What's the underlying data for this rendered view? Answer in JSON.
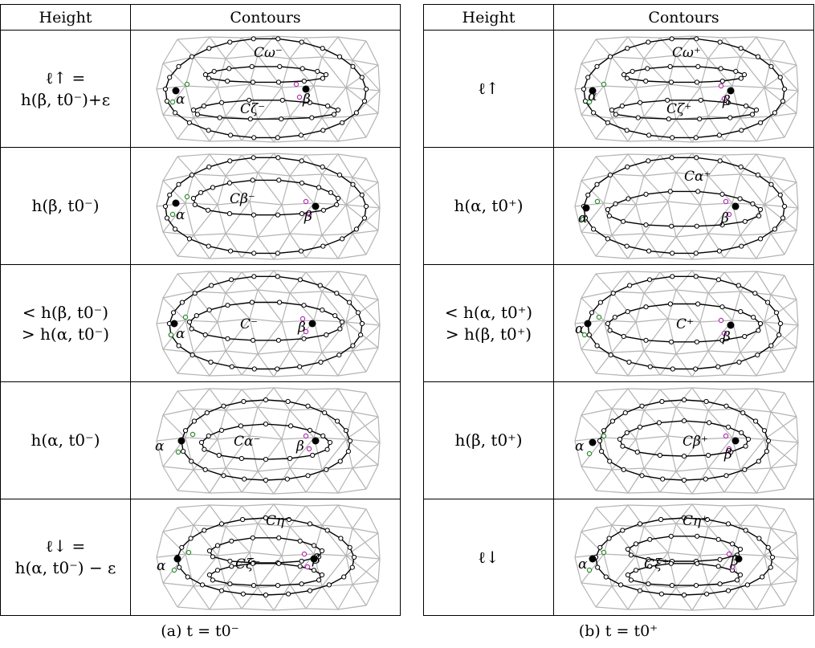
{
  "tables": [
    {
      "headers": {
        "height": "Height",
        "contours": "Contours"
      },
      "rows": [
        {
          "height_lines": [
            "ℓ↑ =",
            "h(β, t0⁻)+ε"
          ],
          "labels": [
            "Cω⁻",
            "Cζ⁻",
            "α",
            "β"
          ]
        },
        {
          "height_lines": [
            "h(β, t0⁻)"
          ],
          "labels": [
            "Cβ⁻",
            "α",
            "β"
          ]
        },
        {
          "height_lines": [
            "< h(β, t0⁻)",
            "> h(α, t0⁻)"
          ],
          "labels": [
            "C⁻",
            "α",
            "β"
          ]
        },
        {
          "height_lines": [
            "h(α, t0⁻)"
          ],
          "labels": [
            "Cα⁻",
            "α",
            "β"
          ]
        },
        {
          "height_lines": [
            "ℓ↓ =",
            "h(α, t0⁻) − ε"
          ],
          "labels": [
            "Cη⁻",
            "Cξ⁻",
            "α",
            "β"
          ]
        }
      ],
      "caption": "(a) t = t0⁻"
    },
    {
      "headers": {
        "height": "Height",
        "contours": "Contours"
      },
      "rows": [
        {
          "height_lines": [
            "ℓ↑"
          ],
          "labels": [
            "Cω⁺",
            "Cζ⁺",
            "α",
            "β"
          ]
        },
        {
          "height_lines": [
            "h(α, t0⁺)"
          ],
          "labels": [
            "Cα⁺",
            "α",
            "β"
          ]
        },
        {
          "height_lines": [
            "< h(α, t0⁺)",
            "> h(β, t0⁺)"
          ],
          "labels": [
            "C⁺",
            "α",
            "β"
          ]
        },
        {
          "height_lines": [
            "h(β, t0⁺)"
          ],
          "labels": [
            "Cβ⁺",
            "α",
            "β"
          ]
        },
        {
          "height_lines": [
            "ℓ↓"
          ],
          "labels": [
            "Cη⁺",
            "Cξ⁺",
            "α",
            "β"
          ]
        }
      ],
      "caption": "(b) t = t0⁺"
    }
  ],
  "colors": {
    "mesh": "#b4b4b4",
    "contour": "#000000",
    "green_vertex": "#2e8b2e",
    "magenta_vertex": "#b030b0"
  }
}
